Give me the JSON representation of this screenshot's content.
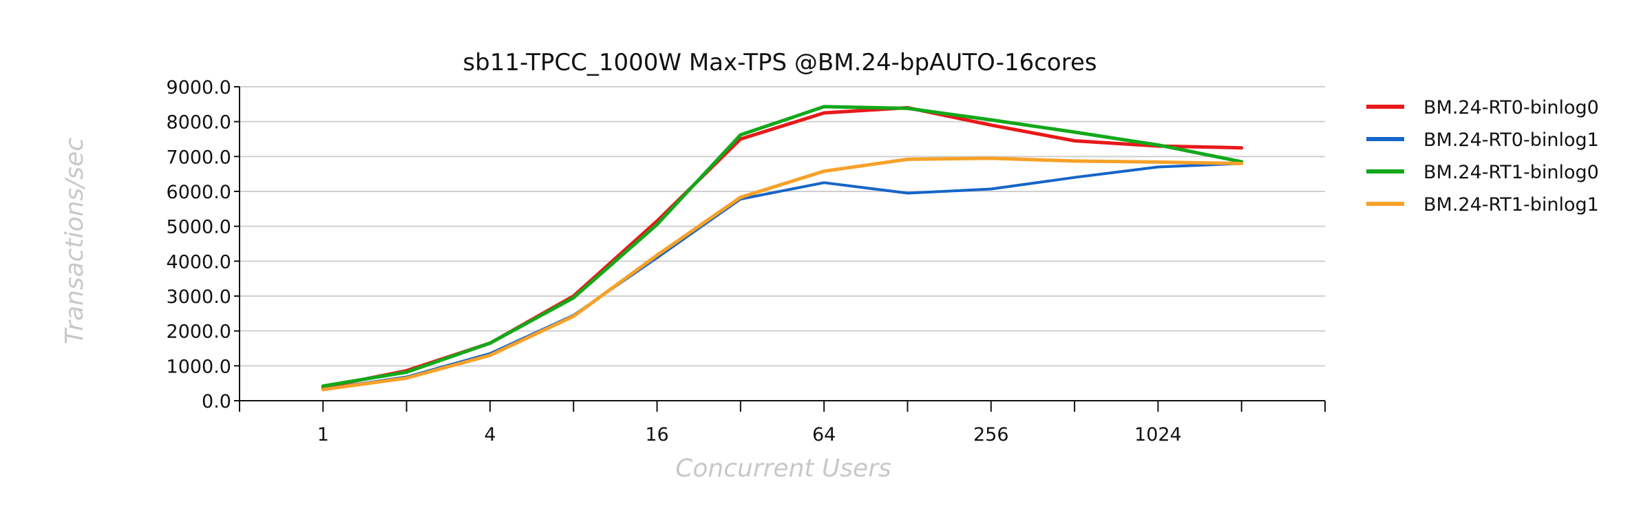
{
  "chart_data": {
    "type": "line",
    "title": "sb11-TPCC_1000W Max-TPS @BM.24-bpAUTO-16cores",
    "xlabel": "Concurrent Users",
    "ylabel": "Transactions/sec",
    "x": [
      1,
      2,
      4,
      8,
      16,
      32,
      64,
      128,
      256,
      512,
      1024,
      2048
    ],
    "x_tick_labels": [
      "1",
      "4",
      "16",
      "64",
      "256",
      "1024"
    ],
    "x_tick_values": [
      1,
      4,
      16,
      64,
      256,
      1024
    ],
    "x_scale": "log2",
    "xlim": [
      0.5,
      4096
    ],
    "ylim": [
      0,
      9000
    ],
    "y_ticks": [
      "0.0",
      "1000.0",
      "2000.0",
      "3000.0",
      "4000.0",
      "5000.0",
      "6000.0",
      "7000.0",
      "8000.0",
      "9000.0"
    ],
    "grid": true,
    "legend_position": "right",
    "series": [
      {
        "name": "BM.24-RT0-binlog0",
        "color": "#e8191a",
        "stroke": 5,
        "values": [
          380,
          860,
          1650,
          3000,
          5150,
          7500,
          8250,
          8400,
          7900,
          7450,
          7300,
          7250
        ]
      },
      {
        "name": "BM.24-RT0-binlog1",
        "color": "#1565c8",
        "stroke": 4,
        "values": [
          330,
          680,
          1350,
          2450,
          4100,
          5780,
          6250,
          5950,
          6070,
          6400,
          6700,
          6800
        ]
      },
      {
        "name": "BM.24-RT1-binlog0",
        "color": "#12a81a",
        "stroke": 5,
        "values": [
          420,
          820,
          1650,
          2950,
          5050,
          7620,
          8430,
          8380,
          8050,
          7700,
          7330,
          6850
        ]
      },
      {
        "name": "BM.24-RT1-binlog1",
        "color": "#f7a128",
        "stroke": 5,
        "values": [
          320,
          650,
          1300,
          2420,
          4170,
          5830,
          6580,
          6920,
          6950,
          6870,
          6840,
          6800
        ]
      }
    ]
  }
}
